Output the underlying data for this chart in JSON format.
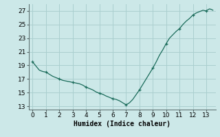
{
  "x": [
    0,
    0.25,
    0.5,
    0.75,
    1,
    1.25,
    1.5,
    1.75,
    2,
    2.25,
    2.5,
    2.75,
    3,
    3.25,
    3.5,
    3.75,
    4,
    4.25,
    4.5,
    4.75,
    5,
    5.25,
    5.5,
    5.75,
    6,
    6.25,
    6.5,
    6.75,
    7,
    7.25,
    7.5,
    7.75,
    8,
    8.25,
    8.5,
    8.75,
    9,
    9.25,
    9.5,
    9.75,
    10,
    10.25,
    10.5,
    10.75,
    11,
    11.25,
    11.5,
    11.75,
    12,
    12.25,
    12.5,
    12.75,
    13,
    13.1,
    13.25,
    13.4,
    13.5
  ],
  "y": [
    19.5,
    18.9,
    18.3,
    18.1,
    18.0,
    17.7,
    17.4,
    17.2,
    17.0,
    16.8,
    16.7,
    16.6,
    16.5,
    16.4,
    16.3,
    16.1,
    15.8,
    15.6,
    15.4,
    15.1,
    14.9,
    14.75,
    14.5,
    14.3,
    14.1,
    14.0,
    13.8,
    13.5,
    13.2,
    13.5,
    14.0,
    14.7,
    15.4,
    16.2,
    17.0,
    17.8,
    18.6,
    19.5,
    20.5,
    21.3,
    22.2,
    23.0,
    23.5,
    24.0,
    24.4,
    25.0,
    25.5,
    25.9,
    26.4,
    26.7,
    26.9,
    27.1,
    27.0,
    27.15,
    27.3,
    27.2,
    27.1
  ],
  "marker_x": [
    0,
    1,
    2,
    3,
    4,
    5,
    6,
    7,
    8,
    9,
    10,
    11,
    12,
    13
  ],
  "marker_y": [
    19.5,
    18.0,
    17.0,
    16.5,
    15.8,
    14.9,
    14.1,
    13.2,
    15.4,
    18.6,
    22.2,
    24.4,
    26.4,
    27.0
  ],
  "bg_color": "#cce8e8",
  "line_color": "#1a6b5a",
  "grid_color": "#aacfcf",
  "xlabel": "Humidex (Indice chaleur)",
  "xlim": [
    -0.3,
    13.7
  ],
  "ylim": [
    12.5,
    28.0
  ],
  "yticks": [
    13,
    15,
    17,
    19,
    21,
    23,
    25,
    27
  ],
  "xticks": [
    0,
    1,
    2,
    3,
    4,
    5,
    6,
    7,
    8,
    9,
    10,
    11,
    12,
    13
  ],
  "label_fontsize": 7,
  "tick_fontsize": 6.5
}
